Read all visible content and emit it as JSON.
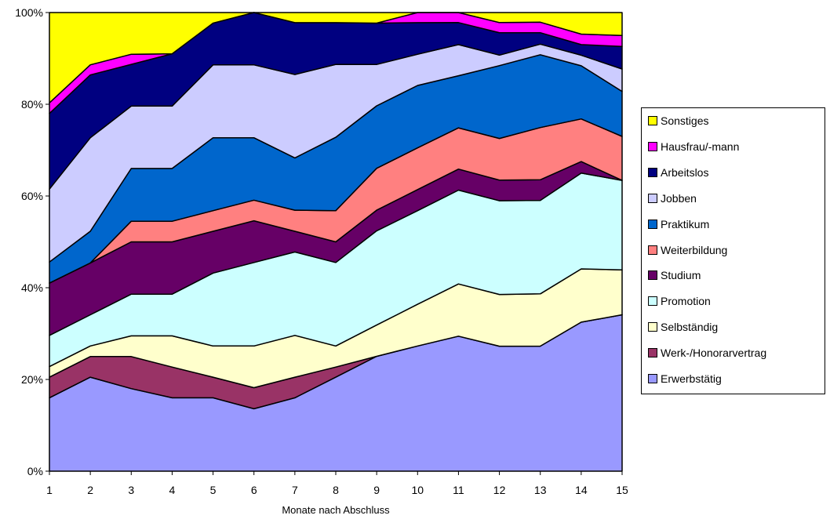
{
  "chart_data": {
    "type": "area",
    "stacked": "100%",
    "title": "",
    "xlabel": "Monate nach Abschluss",
    "ylabel": "",
    "x": [
      1,
      2,
      3,
      4,
      5,
      6,
      7,
      8,
      9,
      10,
      11,
      12,
      13,
      14,
      15
    ],
    "ylim": [
      0,
      100
    ],
    "yticks": [
      "0%",
      "20%",
      "40%",
      "60%",
      "80%",
      "100%"
    ],
    "ytick_values": [
      0,
      20,
      40,
      60,
      80,
      100
    ],
    "legend_position": "right",
    "series": [
      {
        "name": "Erwerbstätig",
        "color": "#9999FF",
        "values": [
          16,
          20.5,
          18,
          16,
          16,
          13.6,
          16,
          20.5,
          25,
          27.3,
          29.5,
          27.3,
          27.3,
          32.5,
          34.1
        ]
      },
      {
        "name": "Werk-/Honorarvertrag",
        "color": "#993366",
        "values": [
          4.5,
          4.5,
          7,
          6.7,
          4.5,
          4.6,
          4.5,
          2.2,
          0,
          0,
          0,
          0,
          0,
          0,
          0
        ]
      },
      {
        "name": "Selbständig",
        "color": "#FFFFCC",
        "values": [
          2.3,
          2.3,
          4.5,
          6.8,
          6.8,
          9.1,
          9.1,
          4.6,
          6.8,
          9.1,
          11.4,
          11.3,
          11.4,
          11.6,
          9.8
        ]
      },
      {
        "name": "Promotion",
        "color": "#CCFFFF",
        "values": [
          6.8,
          6.8,
          9.1,
          9.1,
          15.9,
          18.2,
          18.2,
          18.2,
          20.5,
          20.4,
          20.5,
          20.5,
          20.4,
          20.9,
          19.5
        ]
      },
      {
        "name": "Studium",
        "color": "#660066",
        "values": [
          11.4,
          11.3,
          11.4,
          11.4,
          9.1,
          9.1,
          4.5,
          4.5,
          4.5,
          4.6,
          4.6,
          4.5,
          4.5,
          2.5,
          0
        ]
      },
      {
        "name": "Weiterbildung",
        "color": "#FF8080",
        "values": [
          0,
          0,
          4.5,
          4.5,
          4.5,
          4.5,
          4.6,
          6.8,
          9.1,
          9.1,
          9.0,
          9.1,
          11.4,
          9.3,
          9.6
        ]
      },
      {
        "name": "Praktikum",
        "color": "#0066CC",
        "values": [
          4.6,
          6.9,
          11.5,
          11.5,
          15.9,
          13.6,
          11.4,
          16.0,
          13.6,
          13.6,
          11.4,
          15.9,
          15.9,
          11.6,
          9.8
        ]
      },
      {
        "name": "Jobben",
        "color": "#CCCCFF",
        "values": [
          15.9,
          20.4,
          13.6,
          13.6,
          15.9,
          15.9,
          18.2,
          15.9,
          9.0,
          6.8,
          6.8,
          2.3,
          2.3,
          2.3,
          4.9
        ]
      },
      {
        "name": "Arbeitslos",
        "color": "#000080",
        "values": [
          16.5,
          13.7,
          9.1,
          11.4,
          9.1,
          11.4,
          11.3,
          9.1,
          9.0,
          6.9,
          4.8,
          4.9,
          2.5,
          2.3,
          4.9
        ]
      },
      {
        "name": "Hausfrau/-mann",
        "color": "#FF00FF",
        "values": [
          2.3,
          2.2,
          2.2,
          0,
          0,
          0,
          0,
          0,
          0,
          2.2,
          2.2,
          2.2,
          2.3,
          2.3,
          2.4
        ]
      },
      {
        "name": "Sonstiges",
        "color": "#FFFF00",
        "values": [
          19.7,
          11.4,
          9.1,
          9.0,
          2.3,
          0,
          2.2,
          2.2,
          2.3,
          0,
          0,
          2.2,
          2.1,
          4.7,
          5.0
        ]
      }
    ]
  }
}
